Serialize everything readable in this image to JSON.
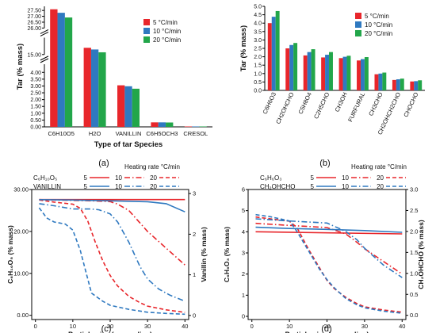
{
  "colors": {
    "red": "#e8262b",
    "blue": "#2f79c0",
    "green": "#22a64a",
    "text": "#111111"
  },
  "panel_labels": [
    "(a)",
    "(b)",
    "(c)",
    "(d)"
  ],
  "chart_data": [
    {
      "type": "bar",
      "panel": "(a)",
      "xlabel": "Type of tar Species",
      "ylabel": "Tar (% mass)",
      "axis_breaks": [
        [
          4.6,
          15.0
        ],
        [
          16.5,
          26.0
        ]
      ],
      "yticks": [
        0.0,
        0.5,
        1.0,
        1.5,
        2.0,
        2.5,
        3.0,
        3.5,
        4.0,
        15.0,
        26.0,
        26.5,
        27.0,
        27.5
      ],
      "categories": [
        "C6H10O5",
        "H2O",
        "VANILLIN",
        "C6H5OCH3",
        "CRESOL"
      ],
      "series": [
        {
          "name": "5 °C/min",
          "color": "red",
          "values": [
            27.6,
            15.6,
            3.05,
            0.33,
            0.03
          ]
        },
        {
          "name": "10 °C/min",
          "color": "blue",
          "values": [
            27.3,
            15.45,
            2.98,
            0.33,
            0.03
          ]
        },
        {
          "name": "20 °C/min",
          "color": "green",
          "values": [
            26.9,
            15.2,
            2.8,
            0.32,
            0.03
          ]
        }
      ],
      "legend": "top-right"
    },
    {
      "type": "bar",
      "panel": "(b)",
      "xlabel": "",
      "ylabel": "Tar (% mass)",
      "ylim": [
        0,
        5
      ],
      "yticks": [
        0.0,
        0.5,
        1.0,
        1.5,
        2.0,
        2.5,
        3.0,
        3.5,
        4.0,
        4.5,
        5.0
      ],
      "categories": [
        "C6H6O3",
        "CH2OHCHO",
        "C5H8O4",
        "C2H5CHO",
        "CH3OH",
        "FURFURAL",
        "CH3CHO",
        "CH2OHCH2CHO",
        "CHOCHO"
      ],
      "series": [
        {
          "name": "5 °C/min",
          "color": "red",
          "values": [
            4.0,
            2.5,
            2.08,
            1.96,
            1.92,
            1.78,
            0.96,
            0.62,
            0.53
          ]
        },
        {
          "name": "10 °C/min",
          "color": "blue",
          "values": [
            4.38,
            2.7,
            2.28,
            2.12,
            2.0,
            1.86,
            1.0,
            0.66,
            0.55
          ]
        },
        {
          "name": "20 °C/min",
          "color": "green",
          "values": [
            4.72,
            2.82,
            2.45,
            2.28,
            2.06,
            1.98,
            1.06,
            0.7,
            0.6
          ]
        }
      ],
      "legend": "top-right"
    },
    {
      "type": "line",
      "panel": "(c)",
      "xlabel": "Particle size (mm radius)",
      "ylabel_left": "C₆H₁₀O₅ (% mass)",
      "ylabel_right": "Vanillin (% mass)",
      "xlim": [
        -1,
        41
      ],
      "ylim_left": [
        -1,
        30
      ],
      "ylim_right": [
        -0.1,
        3.1
      ],
      "xticks": [
        0,
        10,
        20,
        30,
        40
      ],
      "yticks_left": [
        0.0,
        10.0,
        20.0,
        30.0
      ],
      "yticks_right": [
        0,
        1,
        2,
        3
      ],
      "legend_title": "Heating rate °C/min",
      "legend_rows": [
        {
          "label": "C₆H₁₀O₅",
          "color": "red",
          "rates": [
            "5",
            "10",
            "20"
          ]
        },
        {
          "label": "VANILLIN",
          "color": "blue",
          "rates": [
            "5",
            "10",
            "20"
          ]
        }
      ],
      "series": [
        {
          "name": "C6H10O5 5",
          "axis": "left",
          "color": "red",
          "style": "solid",
          "x": [
            1,
            40
          ],
          "y": [
            27.6,
            27.6
          ]
        },
        {
          "name": "C6H10O5 10",
          "axis": "left",
          "color": "red",
          "style": "dashdot",
          "x": [
            1,
            5,
            10,
            15,
            20,
            22,
            25,
            28,
            30,
            35,
            40
          ],
          "y": [
            27.6,
            27.5,
            27.4,
            27.3,
            27.1,
            26.5,
            25.0,
            22.0,
            20.0,
            16.0,
            12.0
          ]
        },
        {
          "name": "C6H10O5 20",
          "axis": "left",
          "color": "red",
          "style": "dashed",
          "x": [
            1,
            5,
            10,
            12,
            14,
            16,
            18,
            20,
            22,
            25,
            28,
            30,
            35,
            40
          ],
          "y": [
            27.5,
            27.0,
            26.5,
            25.5,
            22.5,
            17.5,
            13.0,
            9.5,
            7.0,
            4.5,
            3.0,
            2.2,
            1.3,
            0.7
          ]
        },
        {
          "name": "Vanillin 5",
          "axis": "right",
          "color": "blue",
          "style": "solid",
          "x": [
            1,
            10,
            20,
            30,
            35,
            40
          ],
          "y": [
            2.85,
            2.84,
            2.82,
            2.8,
            2.75,
            2.55
          ]
        },
        {
          "name": "Vanillin 10",
          "axis": "right",
          "color": "blue",
          "style": "dashdot",
          "x": [
            1,
            5,
            10,
            15,
            17,
            20,
            22,
            25,
            28,
            30,
            33,
            36,
            40
          ],
          "y": [
            2.75,
            2.7,
            2.62,
            2.62,
            2.6,
            2.5,
            2.3,
            1.8,
            1.2,
            0.9,
            0.65,
            0.5,
            0.35
          ]
        },
        {
          "name": "Vanillin 20",
          "axis": "right",
          "color": "blue",
          "style": "dashed",
          "x": [
            1,
            3,
            5,
            8,
            10,
            12,
            14,
            15,
            18,
            20,
            25,
            30,
            35,
            40
          ],
          "y": [
            2.65,
            2.4,
            2.3,
            2.25,
            2.1,
            1.6,
            0.9,
            0.55,
            0.35,
            0.25,
            0.15,
            0.08,
            0.05,
            0.03
          ]
        }
      ],
      "legend": "top"
    },
    {
      "type": "line",
      "panel": "(d)",
      "xlabel": "Particle size (mm radius)",
      "ylabel_left": "C₆H₆O₃ (% mass)",
      "ylabel_right": "CH₂OHCHO (% mass)",
      "xlim": [
        -1,
        41
      ],
      "ylim_left": [
        -0.15,
        6.0
      ],
      "ylim_right": [
        -0.1,
        3.0
      ],
      "xticks": [
        0,
        10,
        20,
        30,
        40
      ],
      "yticks_left": [
        0,
        1,
        2,
        3,
        4,
        5,
        6
      ],
      "yticks_right": [
        0.0,
        0.5,
        1.0,
        1.5,
        2.0,
        2.5,
        3.0
      ],
      "legend_title": "Heating rate °C/min",
      "legend_rows": [
        {
          "label": "C₆H₆O₃",
          "color": "red",
          "rates": [
            "5",
            "10",
            "20"
          ]
        },
        {
          "label": "CH₂OHCHO",
          "color": "blue",
          "rates": [
            "5",
            "10",
            "20"
          ]
        }
      ],
      "series": [
        {
          "name": "C6H6O3 5",
          "axis": "left",
          "color": "red",
          "style": "solid",
          "x": [
            1,
            40
          ],
          "y": [
            4.0,
            3.9
          ]
        },
        {
          "name": "C6H6O3 10",
          "axis": "left",
          "color": "red",
          "style": "dashdot",
          "x": [
            1,
            10,
            20,
            25,
            28,
            30,
            35,
            40
          ],
          "y": [
            4.4,
            4.3,
            4.2,
            3.9,
            3.5,
            3.2,
            2.6,
            2.0
          ]
        },
        {
          "name": "C6H6O3 20",
          "axis": "left",
          "color": "red",
          "style": "dashed",
          "x": [
            1,
            10,
            12,
            15,
            18,
            20,
            22,
            25,
            28,
            30,
            35,
            40
          ],
          "y": [
            4.7,
            4.5,
            4.2,
            3.2,
            2.3,
            1.7,
            1.3,
            0.9,
            0.6,
            0.45,
            0.3,
            0.2
          ]
        },
        {
          "name": "CH2OHCHO 5",
          "axis": "right",
          "color": "blue",
          "style": "solid",
          "x": [
            1,
            10,
            20,
            30,
            40
          ],
          "y": [
            2.1,
            2.07,
            2.05,
            2.02,
            1.98
          ]
        },
        {
          "name": "CH2OHCHO 10",
          "axis": "right",
          "color": "blue",
          "style": "dashdot",
          "x": [
            1,
            10,
            20,
            25,
            28,
            30,
            35,
            40
          ],
          "y": [
            2.3,
            2.25,
            2.2,
            2.0,
            1.8,
            1.6,
            1.2,
            0.9
          ]
        },
        {
          "name": "CH2OHCHO 20",
          "axis": "right",
          "color": "blue",
          "style": "dashed",
          "x": [
            1,
            5,
            10,
            12,
            15,
            18,
            20,
            22,
            25,
            28,
            30,
            35,
            40
          ],
          "y": [
            2.4,
            2.35,
            2.25,
            2.0,
            1.55,
            1.1,
            0.85,
            0.65,
            0.4,
            0.25,
            0.18,
            0.1,
            0.05
          ]
        }
      ],
      "legend": "top"
    }
  ]
}
